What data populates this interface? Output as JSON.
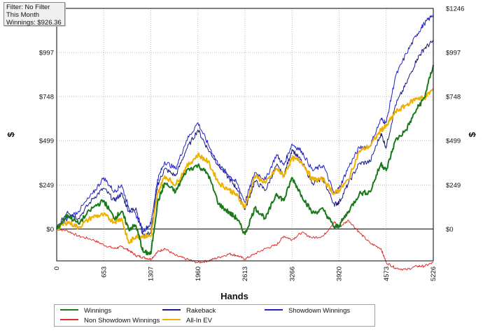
{
  "info_box": {
    "filter": "Filter: No Filter",
    "period": "This Month",
    "winnings": "Winnings: $926.36"
  },
  "chart_data": {
    "type": "line",
    "xlabel": "Hands",
    "ylabel": "$",
    "xlim": [
      0,
      5226
    ],
    "ylim": [
      -180,
      1246
    ],
    "x_ticks": [
      "0",
      "653",
      "1307",
      "1960",
      "2613",
      "3266",
      "3920",
      "4573",
      "5226"
    ],
    "y_ticks": [
      {
        "label": "$0",
        "value": 0
      },
      {
        "label": "$249",
        "value": 249
      },
      {
        "label": "$499",
        "value": 499
      },
      {
        "label": "$748",
        "value": 748
      },
      {
        "label": "$997",
        "value": 997
      }
    ],
    "y_top_label": "$1246",
    "grid": true,
    "legend_position": "bottom",
    "series": [
      {
        "name": "Winnings",
        "color": "#1a7a1a",
        "width": 2,
        "x": [
          0,
          150,
          300,
          500,
          653,
          800,
          900,
          1000,
          1100,
          1200,
          1307,
          1400,
          1500,
          1650,
          1800,
          1960,
          2100,
          2250,
          2400,
          2500,
          2613,
          2750,
          2900,
          3050,
          3150,
          3266,
          3400,
          3550,
          3700,
          3850,
          3920,
          4050,
          4200,
          4350,
          4500,
          4573,
          4700,
          4850,
          5000,
          5100,
          5226
        ],
        "y": [
          0,
          80,
          30,
          120,
          160,
          60,
          100,
          0,
          20,
          -130,
          -140,
          150,
          260,
          210,
          330,
          360,
          310,
          140,
          90,
          60,
          -30,
          120,
          60,
          200,
          160,
          290,
          190,
          90,
          110,
          10,
          20,
          100,
          200,
          210,
          370,
          330,
          500,
          560,
          680,
          740,
          926
        ]
      },
      {
        "name": "Rakeback",
        "color": "#1a1a80",
        "width": 1,
        "x": [
          0,
          150,
          300,
          500,
          653,
          800,
          900,
          1000,
          1100,
          1200,
          1307,
          1400,
          1500,
          1650,
          1800,
          1960,
          2100,
          2250,
          2400,
          2500,
          2613,
          2750,
          2900,
          3050,
          3150,
          3266,
          3400,
          3550,
          3700,
          3850,
          3920,
          4050,
          4200,
          4350,
          4500,
          4573,
          4700,
          4850,
          5000,
          5100,
          5226
        ],
        "y": [
          0,
          100,
          60,
          170,
          230,
          160,
          200,
          100,
          120,
          -40,
          -20,
          250,
          340,
          300,
          450,
          560,
          450,
          360,
          280,
          230,
          110,
          270,
          220,
          360,
          300,
          450,
          380,
          260,
          280,
          140,
          150,
          260,
          370,
          380,
          540,
          460,
          700,
          820,
          960,
          1020,
          1060
        ]
      },
      {
        "name": "Showdown Winnings",
        "color": "#2222c8",
        "width": 1,
        "x": [
          0,
          150,
          300,
          500,
          653,
          800,
          900,
          1000,
          1100,
          1200,
          1307,
          1400,
          1500,
          1650,
          1800,
          1960,
          2100,
          2250,
          2400,
          2500,
          2613,
          2750,
          2900,
          3050,
          3150,
          3266,
          3400,
          3550,
          3700,
          3850,
          3920,
          4050,
          4200,
          4350,
          4500,
          4573,
          4700,
          4850,
          5000,
          5100,
          5226
        ],
        "y": [
          0,
          60,
          100,
          200,
          290,
          210,
          250,
          120,
          80,
          -10,
          30,
          280,
          380,
          340,
          500,
          600,
          480,
          360,
          300,
          260,
          150,
          320,
          280,
          420,
          360,
          480,
          440,
          330,
          360,
          200,
          230,
          350,
          460,
          470,
          620,
          600,
          860,
          990,
          1100,
          1160,
          1210
        ]
      },
      {
        "name": "Non Showdown Winnings",
        "color": "#e03030",
        "width": 1,
        "x": [
          0,
          150,
          300,
          500,
          653,
          800,
          900,
          1000,
          1100,
          1200,
          1307,
          1400,
          1500,
          1650,
          1800,
          1960,
          2100,
          2250,
          2400,
          2500,
          2613,
          2750,
          2900,
          3050,
          3150,
          3266,
          3400,
          3550,
          3700,
          3850,
          3920,
          4050,
          4200,
          4350,
          4500,
          4573,
          4700,
          4850,
          5000,
          5100,
          5226
        ],
        "y": [
          0,
          -10,
          -40,
          -60,
          -90,
          -110,
          -100,
          -120,
          -150,
          -160,
          -170,
          -130,
          -110,
          -150,
          -170,
          -190,
          -180,
          -160,
          -140,
          -150,
          -170,
          -140,
          -110,
          -90,
          -40,
          -60,
          -20,
          -50,
          -40,
          40,
          10,
          50,
          -20,
          -80,
          -110,
          -190,
          -220,
          -230,
          -210,
          -210,
          -190
        ]
      },
      {
        "name": "All-In EV",
        "color": "#f0b000",
        "width": 2,
        "x": [
          0,
          150,
          300,
          500,
          653,
          800,
          900,
          1000,
          1100,
          1200,
          1307,
          1400,
          1500,
          1650,
          1800,
          1960,
          2100,
          2250,
          2400,
          2500,
          2613,
          2750,
          2900,
          3050,
          3150,
          3266,
          3400,
          3550,
          3700,
          3850,
          3920,
          4050,
          4200,
          4350,
          4500,
          4573,
          4700,
          4850,
          5000,
          5100,
          5226
        ],
        "y": [
          0,
          40,
          10,
          70,
          80,
          40,
          60,
          -80,
          -40,
          -40,
          -40,
          200,
          300,
          250,
          350,
          420,
          380,
          260,
          220,
          190,
          120,
          300,
          260,
          340,
          300,
          400,
          380,
          280,
          280,
          200,
          220,
          280,
          440,
          470,
          560,
          580,
          660,
          700,
          740,
          740,
          790
        ]
      }
    ]
  },
  "legend": [
    {
      "label": "Winnings",
      "color": "#1a7a1a"
    },
    {
      "label": "Rakeback",
      "color": "#1a1a80"
    },
    {
      "label": "Showdown Winnings",
      "color": "#2222c8"
    },
    {
      "label": "Non Showdown Winnings",
      "color": "#e03030"
    },
    {
      "label": "All-In EV",
      "color": "#f0b000"
    }
  ]
}
